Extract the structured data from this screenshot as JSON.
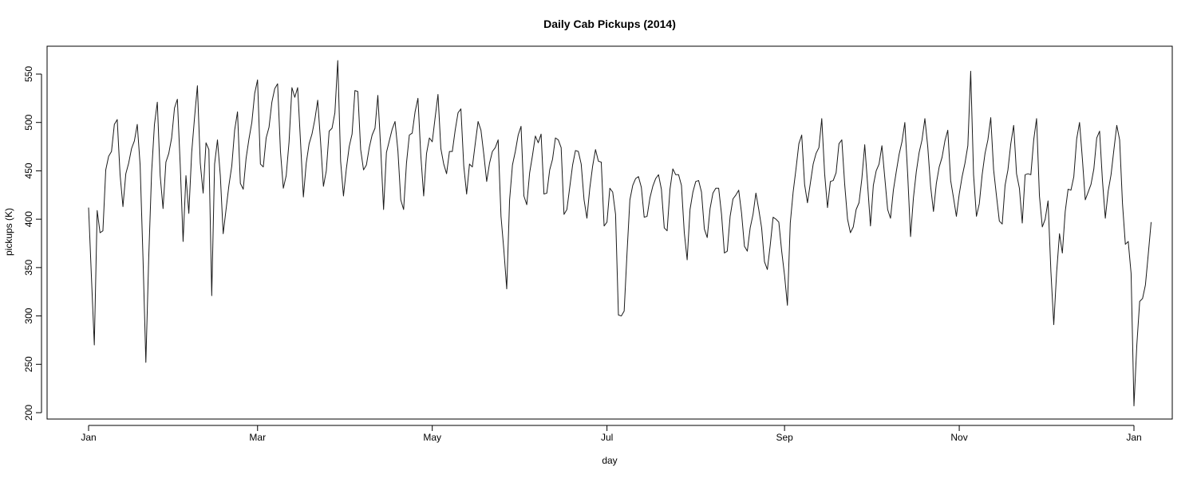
{
  "chart_data": {
    "type": "line",
    "title": "Daily Cab Pickups (2014)",
    "xlabel": "day",
    "ylabel": "pickups (K)",
    "xlim": [
      "2014-01-01",
      "2015-01-01"
    ],
    "ylim": [
      200,
      565
    ],
    "yticks": [
      200,
      250,
      300,
      350,
      400,
      450,
      500,
      550
    ],
    "xticks": [
      {
        "date": "2014-01-01",
        "label": "Jan"
      },
      {
        "date": "2014-03-01",
        "label": "Mar"
      },
      {
        "date": "2014-05-01",
        "label": "May"
      },
      {
        "date": "2014-07-01",
        "label": "Jul"
      },
      {
        "date": "2014-09-01",
        "label": "Sep"
      },
      {
        "date": "2014-11-01",
        "label": "Nov"
      },
      {
        "date": "2015-01-01",
        "label": "Jan"
      }
    ],
    "grid": false,
    "series": [
      {
        "start_date": "2014-01-01",
        "values": [
          412,
          340,
          270,
          409,
          386,
          388,
          451,
          465,
          470,
          498,
          503,
          446,
          413,
          447,
          458,
          473,
          481,
          498,
          456,
          360,
          252,
          360,
          448,
          498,
          521,
          445,
          411,
          459,
          468,
          484,
          515,
          524,
          456,
          377,
          445,
          406,
          469,
          505,
          538,
          458,
          427,
          479,
          472,
          321,
          457,
          482,
          445,
          385,
          410,
          435,
          455,
          492,
          511,
          437,
          431,
          463,
          483,
          500,
          530,
          544,
          457,
          454,
          484,
          495,
          521,
          535,
          540,
          470,
          432,
          445,
          480,
          536,
          526,
          536,
          480,
          423,
          458,
          478,
          488,
          503,
          523,
          480,
          434,
          450,
          491,
          494,
          510,
          564,
          460,
          424,
          452,
          475,
          488,
          533,
          532,
          472,
          451,
          456,
          474,
          487,
          494,
          528,
          473,
          410,
          469,
          481,
          493,
          501,
          471,
          420,
          410,
          458,
          487,
          489,
          511,
          525,
          466,
          424,
          468,
          484,
          480,
          505,
          529,
          473,
          457,
          447,
          470,
          470,
          492,
          510,
          514,
          455,
          426,
          457,
          454,
          478,
          501,
          492,
          467,
          439,
          458,
          470,
          474,
          482,
          403,
          368,
          328,
          420,
          456,
          470,
          487,
          496,
          424,
          415,
          448,
          466,
          486,
          479,
          488,
          426,
          427,
          451,
          462,
          484,
          482,
          474,
          405,
          410,
          433,
          456,
          471,
          470,
          457,
          420,
          401,
          432,
          455,
          472,
          460,
          459,
          393,
          397,
          432,
          428,
          405,
          301,
          300,
          305,
          365,
          420,
          435,
          442,
          444,
          433,
          402,
          403,
          422,
          434,
          442,
          446,
          431,
          391,
          388,
          431,
          452,
          446,
          446,
          435,
          386,
          358,
          410,
          428,
          439,
          440,
          428,
          390,
          381,
          411,
          427,
          432,
          432,
          405,
          365,
          367,
          403,
          421,
          425,
          430,
          406,
          372,
          367,
          391,
          405,
          427,
          410,
          391,
          356,
          348,
          373,
          402,
          400,
          397,
          367,
          342,
          311,
          396,
          428,
          452,
          478,
          487,
          436,
          417,
          437,
          457,
          468,
          474,
          504,
          447,
          412,
          439,
          440,
          448,
          478,
          482,
          436,
          400,
          386,
          392,
          410,
          417,
          442,
          477,
          436,
          393,
          435,
          450,
          457,
          476,
          443,
          410,
          401,
          430,
          449,
          467,
          480,
          500,
          446,
          382,
          422,
          449,
          469,
          482,
          504,
          475,
          434,
          408,
          437,
          454,
          464,
          481,
          492,
          440,
          422,
          403,
          426,
          444,
          458,
          476,
          553,
          446,
          403,
          416,
          446,
          468,
          482,
          505,
          451,
          424,
          398,
          395,
          435,
          451,
          478,
          497,
          447,
          432,
          396,
          446,
          447,
          446,
          482,
          504,
          424,
          392,
          400,
          419,
          346,
          291,
          345,
          385,
          365,
          408,
          431,
          430,
          444,
          483,
          500,
          462,
          420,
          428,
          436,
          452,
          484,
          491,
          440,
          401,
          429,
          446,
          472,
          497,
          482,
          416,
          374,
          377,
          344,
          207,
          270,
          315,
          318,
          332,
          364,
          397
        ]
      }
    ]
  }
}
